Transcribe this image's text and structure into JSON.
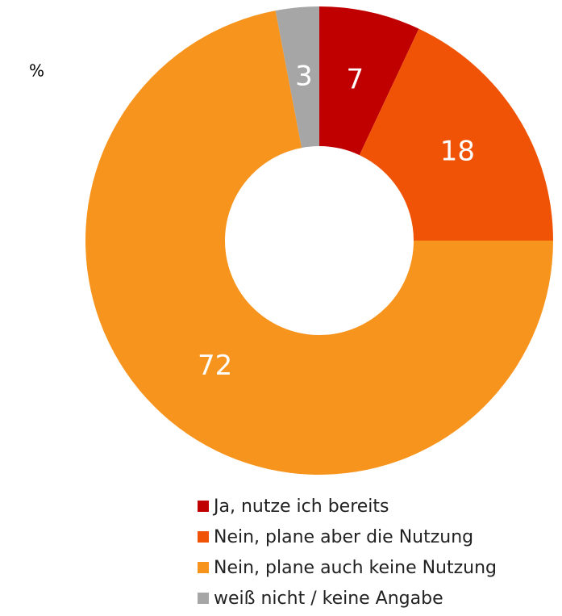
{
  "chart_data": {
    "type": "donut",
    "unit": "%",
    "categories": [
      "Ja, nutze ich bereits",
      "Nein, plane aber die Nutzung",
      "Nein, plane auch keine Nutzung",
      "weiß nicht / keine Angabe"
    ],
    "values": [
      7,
      18,
      72,
      3
    ],
    "colors": [
      "#c00000",
      "#f05305",
      "#f7941d",
      "#a6a6a6"
    ]
  }
}
